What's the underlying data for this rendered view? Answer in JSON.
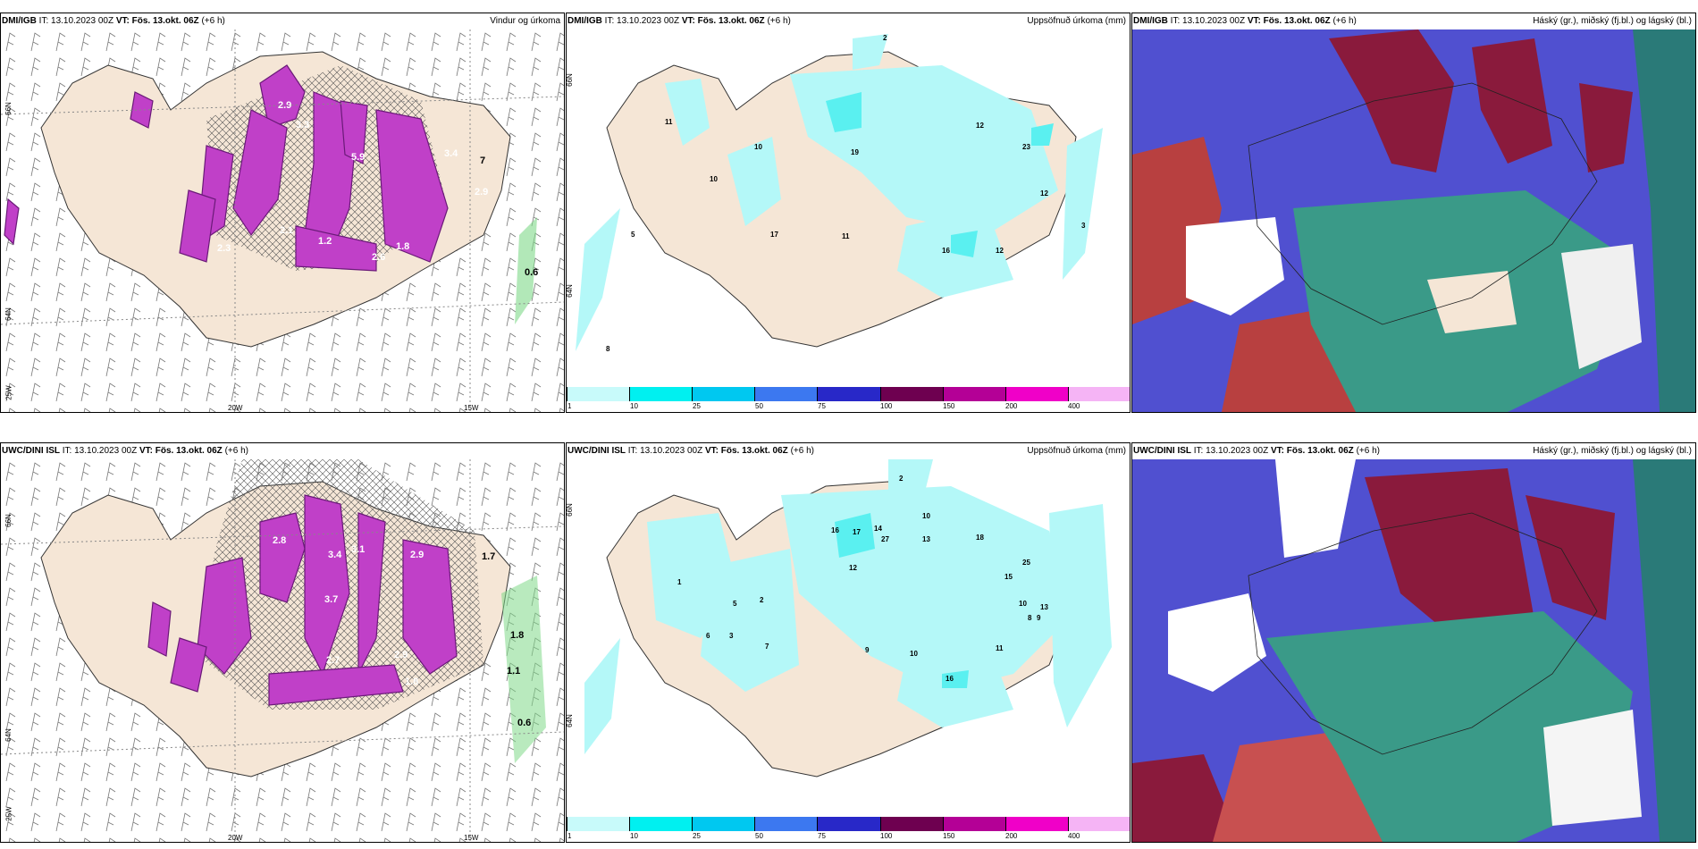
{
  "panels": [
    {
      "id": "top-left",
      "source": "DMI/IGB",
      "it": "IT: 13.10.2023 00Z",
      "vt": "VT: Fös. 13.okt. 06Z",
      "lead": "(+6 h)",
      "title": "Vindur og úrkoma",
      "labels": {
        "lat1": "66N",
        "lat2": "64N",
        "lat3": "25W",
        "lon1": "20W",
        "lon2": "15W"
      },
      "values": [
        "2.9",
        "3.3",
        "5.9",
        "3.4",
        "2.3",
        "2.1",
        "1.2",
        "2.6",
        "1.8",
        "2.9",
        "0.6",
        "7"
      ]
    },
    {
      "id": "top-mid",
      "source": "DMI/IGB",
      "it": "IT: 13.10.2023 00Z",
      "vt": "VT: Fös. 13.okt. 06Z",
      "lead": "(+6 h)",
      "title": "Uppsöfnuð úrkoma (mm)",
      "labels": {
        "lat1": "66N",
        "lat2": "64N"
      },
      "values": [
        "11",
        "10",
        "10",
        "19",
        "12",
        "23",
        "12",
        "17",
        "11",
        "16",
        "12",
        "8",
        "3",
        "2",
        "5"
      ]
    },
    {
      "id": "top-right",
      "source": "DMI/IGB",
      "it": "IT: 13.10.2023 00Z",
      "vt": "VT: Fös. 13.okt. 06Z",
      "lead": "(+6 h)",
      "title": "Háský (gr.), miðský (fj.bl.) og lágský (bl.)"
    },
    {
      "id": "bot-left",
      "source": "UWC/DINI ISL",
      "it": "IT: 13.10.2023 00Z",
      "vt": "VT: Fös. 13.okt. 06Z",
      "lead": "(+6 h)",
      "title": "",
      "labels": {
        "lat1": "66N",
        "lat2": "64N",
        "lat3": "25W",
        "lon1": "20W",
        "lon2": "15W"
      },
      "values": [
        "2.8",
        "3.4",
        "3.1",
        "2.9",
        "3.7",
        "2.7",
        "2.9",
        "1.8",
        "1.7",
        "0.6",
        "1.1",
        "1.8"
      ]
    },
    {
      "id": "bot-mid",
      "source": "UWC/DINI ISL",
      "it": "IT: 13.10.2023 00Z",
      "vt": "VT: Fös. 13.okt. 06Z",
      "lead": "(+6 h)",
      "title": "Uppsöfnuð úrkoma (mm)",
      "labels": {
        "lat1": "66N",
        "lat2": "64N"
      },
      "values": [
        "2",
        "10",
        "16",
        "17",
        "14",
        "27",
        "13",
        "18",
        "25",
        "15",
        "12",
        "13",
        "10",
        "8",
        "9",
        "10",
        "11",
        "16",
        "5",
        "2",
        "3",
        "1",
        "6",
        "7",
        "9"
      ]
    },
    {
      "id": "bot-right",
      "source": "UWC/DINI ISL",
      "it": "IT: 13.10.2023 00Z",
      "vt": "VT: Fös. 13.okt. 06Z",
      "lead": "(+6 h)",
      "title": "Háský (gr.), miðský (fj.bl.) og lágský (bl.)"
    }
  ],
  "legend": {
    "ticks": [
      "1",
      "10",
      "25",
      "50",
      "75",
      "100",
      "150",
      "200",
      "400"
    ],
    "colors": [
      "#c8fafa",
      "#00f0f0",
      "#00c8f0",
      "#3c78f0",
      "#2828c8",
      "#6e0050",
      "#b40096",
      "#f000c8",
      "#f5b4f5"
    ]
  },
  "colors": {
    "land": "#f5e6d6",
    "cyan_light": "#b4f8f8",
    "cyan": "#5af0f0",
    "magenta": "#c040c8",
    "dark_magenta": "#6a1a78",
    "green": "#7fd888",
    "blue": "#5050d0",
    "maroon": "#8a1a3c",
    "teal": "#3a9a88",
    "red": "#b84040"
  }
}
